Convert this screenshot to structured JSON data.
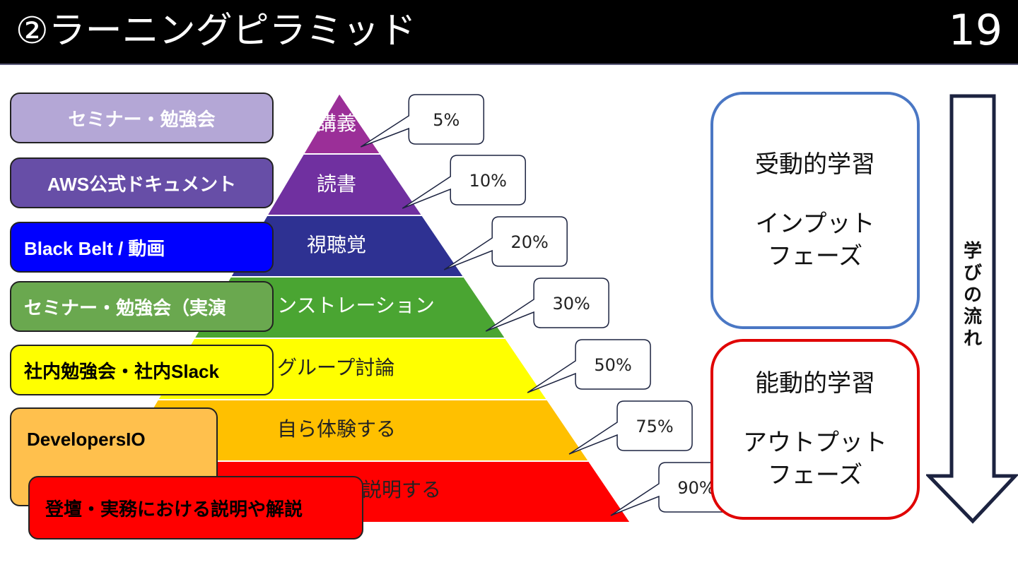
{
  "header": {
    "title": "②ラーニングピラミッド",
    "page_number": "19"
  },
  "pyramid": {
    "bands": [
      {
        "label": "講義",
        "color": "#9b2f98",
        "retention": "5%"
      },
      {
        "label": "読書",
        "color": "#7030a0",
        "retention": "10%"
      },
      {
        "label": "視聴覚",
        "color": "#2e3192",
        "retention": "20%"
      },
      {
        "label": "ンストレーション",
        "color": "#4aa532",
        "retention": "30%"
      },
      {
        "label": "グループ討論",
        "color": "#ffff00",
        "retention": "50%"
      },
      {
        "label": "自ら体験する",
        "color": "#ffc000",
        "retention": "75%"
      },
      {
        "label": "説明する",
        "color": "#ff0000",
        "retention": "90%"
      }
    ]
  },
  "activities": [
    {
      "label": "セミナー・勉強会",
      "bg": "#b4a7d6",
      "color": "#ffffff"
    },
    {
      "label": "AWS公式ドキュメント",
      "bg": "#674ea7",
      "color": "#ffffff"
    },
    {
      "label": "Black Belt / 動画",
      "bg": "#0000ff",
      "color": "#ffffff"
    },
    {
      "label": "セミナー・勉強会（実演",
      "bg": "#6aa84f",
      "color": "#ffffff"
    },
    {
      "label": "社内勉強会・社内Slack",
      "bg": "#ffff00",
      "color": "#000000"
    },
    {
      "label": "DevelopersIO",
      "bg": "#ffc04d",
      "color": "#000000"
    },
    {
      "label": "登壇・実務における説明や解説",
      "bg": "#ff0000",
      "color": "#000000"
    }
  ],
  "phases": {
    "passive": {
      "title": "受動的学習",
      "line1": "インプット",
      "line2": "フェーズ",
      "border": "#4a77c4"
    },
    "active": {
      "title": "能動的学習",
      "line1": "アウトプット",
      "line2": "フェーズ",
      "border": "#e00000"
    }
  },
  "flow": {
    "label": "学びの流れ"
  }
}
